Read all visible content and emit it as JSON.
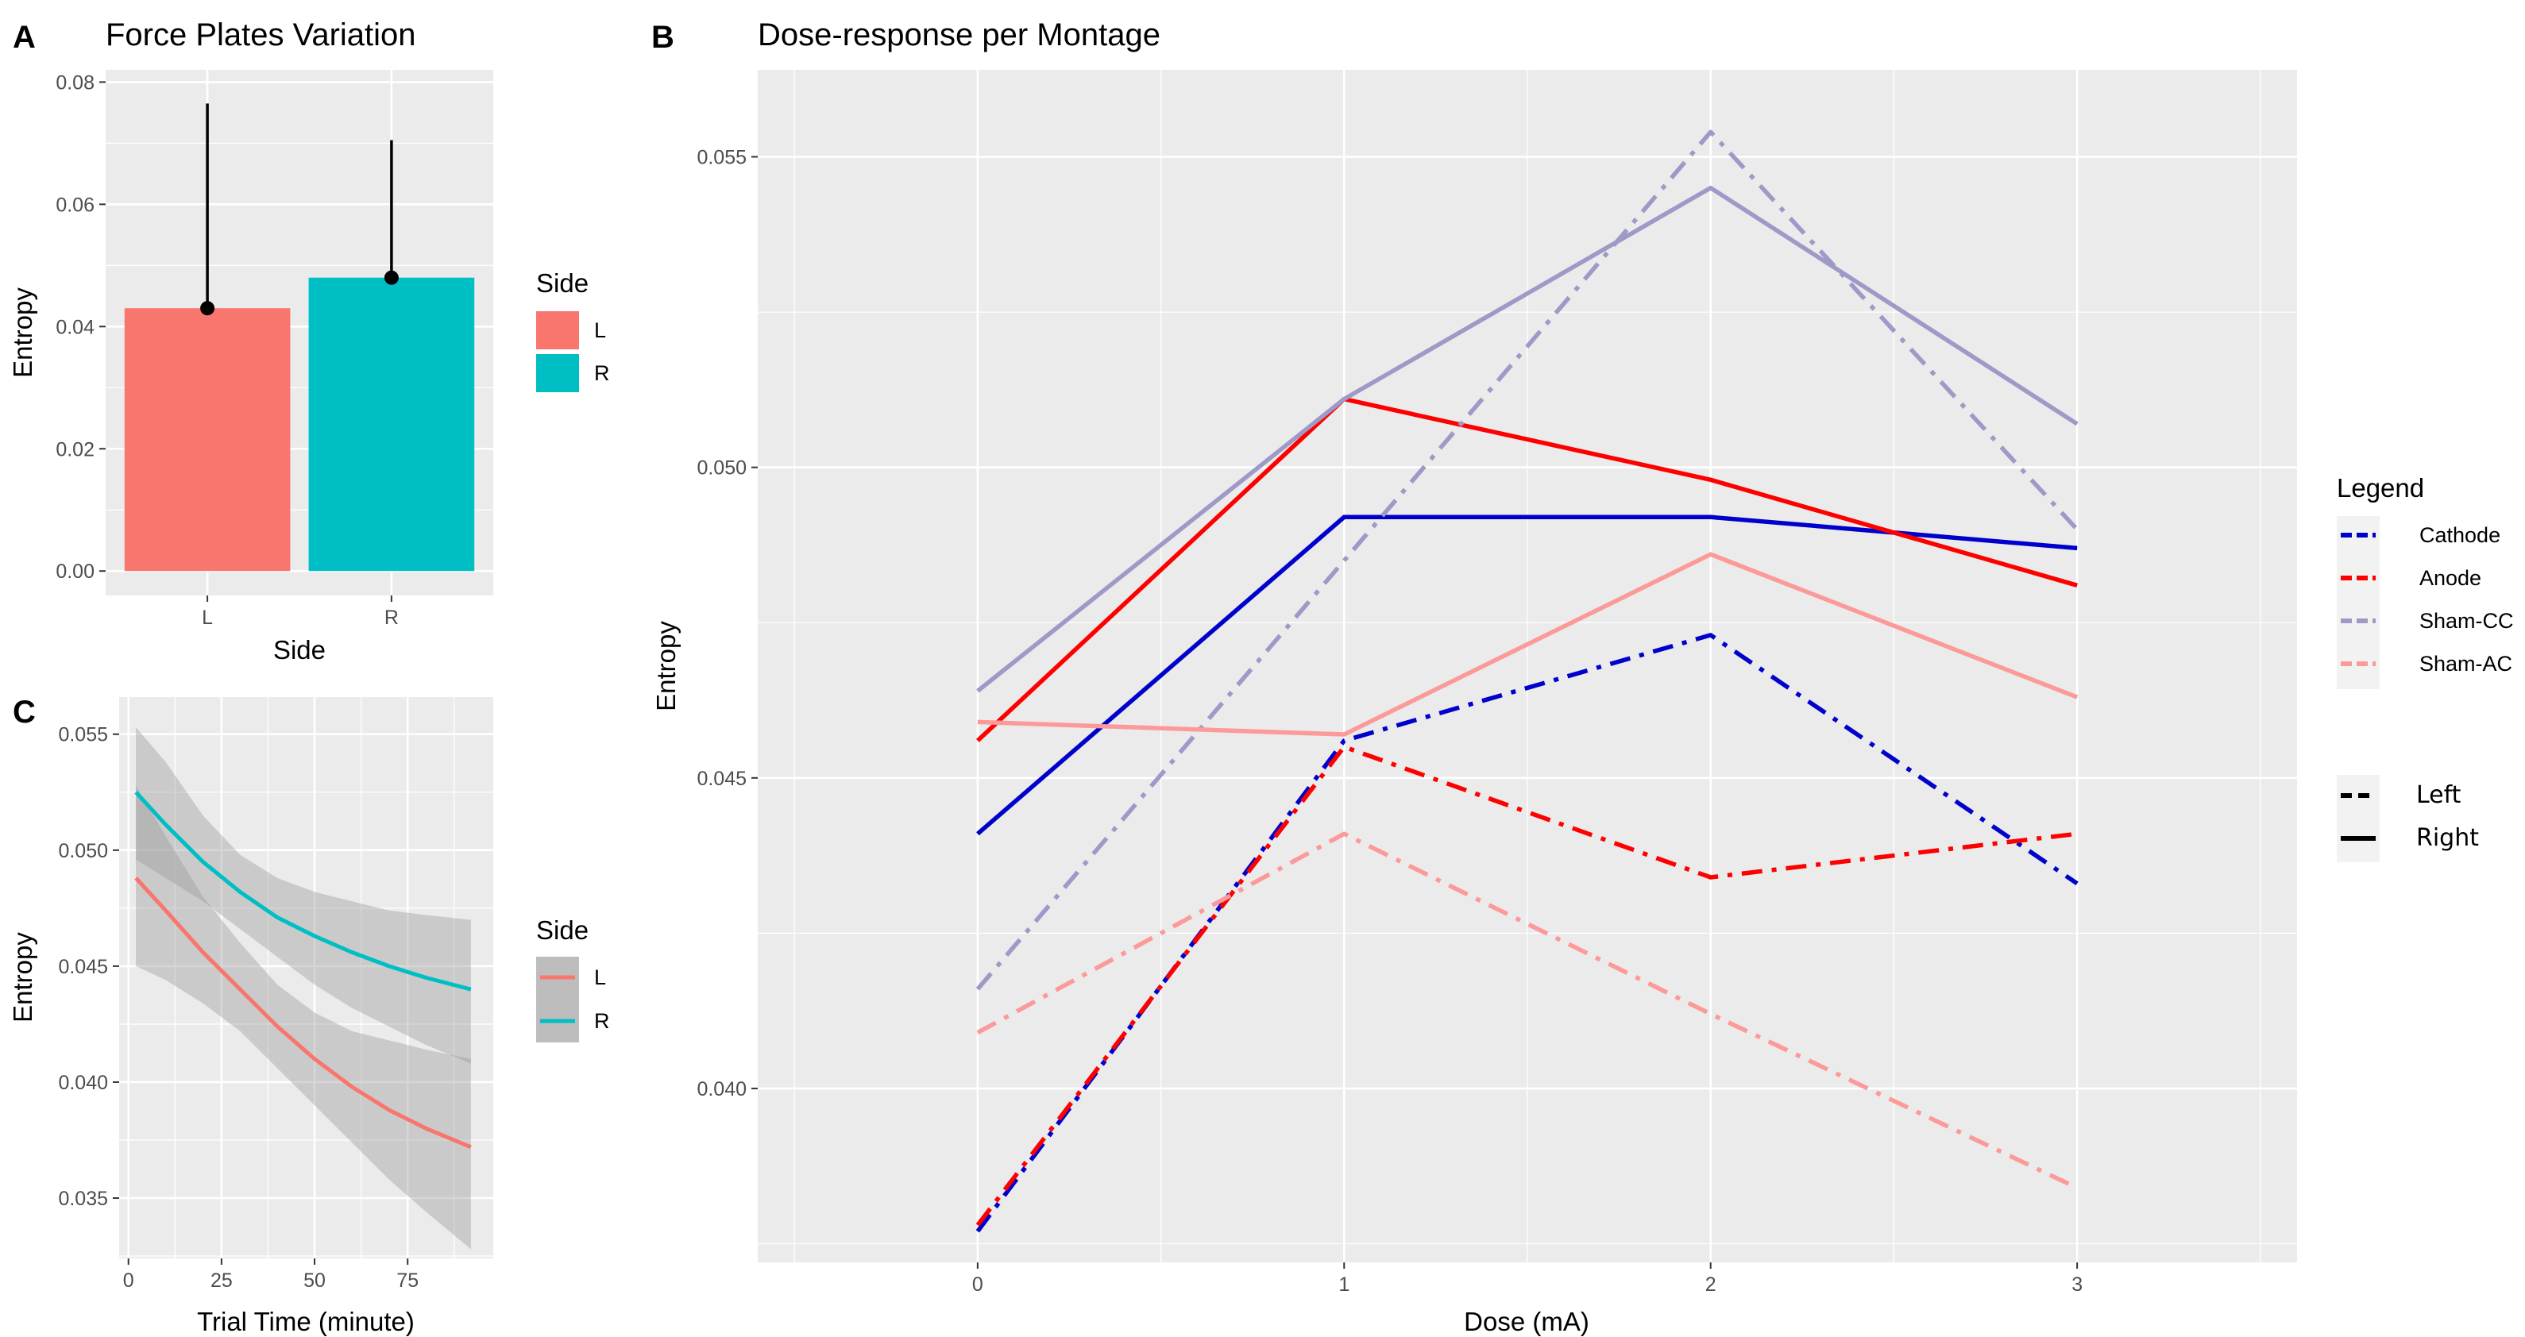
{
  "chart_data": [
    {
      "panel": "A",
      "type": "bar",
      "title": "Force Plates Variation",
      "xlabel": "Side",
      "ylabel": "Entropy",
      "categories": [
        "L",
        "R"
      ],
      "values": [
        0.043,
        0.048
      ],
      "error_upper": [
        0.0765,
        0.0705
      ],
      "colors": [
        "#f8766d",
        "#00bfc4"
      ],
      "ylim": [
        -0.004,
        0.082
      ],
      "yticks": [
        0.0,
        0.02,
        0.04,
        0.06,
        0.08
      ],
      "ytick_labels": [
        "0.00",
        "0.02",
        "0.04",
        "0.06",
        "0.08"
      ],
      "legend": {
        "title": "Side",
        "entries": [
          "L",
          "R"
        ]
      }
    },
    {
      "panel": "B",
      "type": "line",
      "title": "Dose-response per Montage",
      "xlabel": "Dose (mA)",
      "ylabel": "Entropy",
      "x": [
        0,
        1,
        2,
        3
      ],
      "xlim": [
        -0.6,
        3.6
      ],
      "ylim": [
        0.0372,
        0.0564
      ],
      "xticks": [
        0,
        1,
        2,
        3
      ],
      "xtick_labels": [
        "0",
        "1",
        "2",
        "3"
      ],
      "yticks": [
        0.04,
        0.045,
        0.05,
        0.055
      ],
      "ytick_labels": [
        "0.040",
        "0.045",
        "0.050",
        "0.055"
      ],
      "series": [
        {
          "name": "Cathode",
          "side": "Right",
          "color": "#0000cd",
          "values": [
            0.0441,
            0.0492,
            0.0492,
            0.0487
          ]
        },
        {
          "name": "Cathode",
          "side": "Left",
          "color": "#0000cd",
          "values": [
            0.0377,
            0.0456,
            0.0473,
            0.0433
          ]
        },
        {
          "name": "Anode",
          "side": "Right",
          "color": "#ff0000",
          "values": [
            0.0456,
            0.0511,
            0.0498,
            0.0481
          ]
        },
        {
          "name": "Anode",
          "side": "Left",
          "color": "#ff0000",
          "values": [
            0.0378,
            0.0455,
            0.0434,
            0.0441
          ]
        },
        {
          "name": "Sham-CC",
          "side": "Right",
          "color": "#9e9ac8",
          "values": [
            0.0464,
            0.0511,
            0.0545,
            0.0507
          ]
        },
        {
          "name": "Sham-CC",
          "side": "Left",
          "color": "#9e9ac8",
          "values": [
            0.0416,
            0.0485,
            0.0554,
            0.049
          ]
        },
        {
          "name": "Sham-AC",
          "side": "Right",
          "color": "#fb9a99",
          "values": [
            0.0459,
            0.0457,
            0.0486,
            0.0463
          ]
        },
        {
          "name": "Sham-AC",
          "side": "Left",
          "color": "#fb9a99",
          "values": [
            0.0409,
            0.0441,
            0.0412,
            0.0384
          ]
        }
      ],
      "legend": {
        "title": "Legend",
        "montages": [
          {
            "label": "Cathode",
            "color": "#0000cd"
          },
          {
            "label": "Anode",
            "color": "#ff0000"
          },
          {
            "label": "Sham-CC",
            "color": "#9e9ac8"
          },
          {
            "label": "Sham-AC",
            "color": "#fb9a99"
          }
        ],
        "linetypes": [
          {
            "label": "Left",
            "style": "dashed"
          },
          {
            "label": "Right",
            "style": "solid"
          }
        ]
      }
    },
    {
      "panel": "C",
      "type": "line",
      "title": "",
      "xlabel": "Trial Time (minute)",
      "ylabel": "Entropy",
      "xlim": [
        -2.5,
        98
      ],
      "ylim": [
        0.0324,
        0.0566
      ],
      "xticks": [
        0,
        25,
        50,
        75
      ],
      "xtick_labels": [
        "0",
        "25",
        "50",
        "75"
      ],
      "yticks": [
        0.035,
        0.04,
        0.045,
        0.05,
        0.055
      ],
      "ytick_labels": [
        "0.035",
        "0.040",
        "0.045",
        "0.050",
        "0.055"
      ],
      "series": [
        {
          "name": "L",
          "color": "#f8766d",
          "x": [
            2,
            10,
            20,
            30,
            40,
            50,
            60,
            70,
            80,
            92
          ],
          "y": [
            0.0488,
            0.0474,
            0.0456,
            0.044,
            0.0424,
            0.041,
            0.0398,
            0.0388,
            0.038,
            0.0372
          ],
          "ci_lower": [
            0.045,
            0.0444,
            0.0434,
            0.0422,
            0.0406,
            0.039,
            0.0374,
            0.0358,
            0.0344,
            0.0328
          ],
          "ci_upper": [
            0.0528,
            0.0506,
            0.048,
            0.046,
            0.0442,
            0.043,
            0.0422,
            0.0418,
            0.0414,
            0.041
          ]
        },
        {
          "name": "R",
          "color": "#00bfc4",
          "x": [
            2,
            10,
            20,
            30,
            40,
            50,
            60,
            70,
            80,
            92
          ],
          "y": [
            0.0525,
            0.0511,
            0.0495,
            0.0482,
            0.0471,
            0.0463,
            0.0456,
            0.045,
            0.0445,
            0.044
          ],
          "ci_lower": [
            0.0496,
            0.0488,
            0.0478,
            0.0466,
            0.0454,
            0.0442,
            0.0432,
            0.0424,
            0.0416,
            0.0408
          ],
          "ci_upper": [
            0.0553,
            0.0538,
            0.0515,
            0.0498,
            0.0488,
            0.0482,
            0.0478,
            0.0474,
            0.0472,
            0.047
          ]
        }
      ],
      "legend": {
        "title": "Side",
        "entries": [
          "L",
          "R"
        ]
      }
    }
  ]
}
